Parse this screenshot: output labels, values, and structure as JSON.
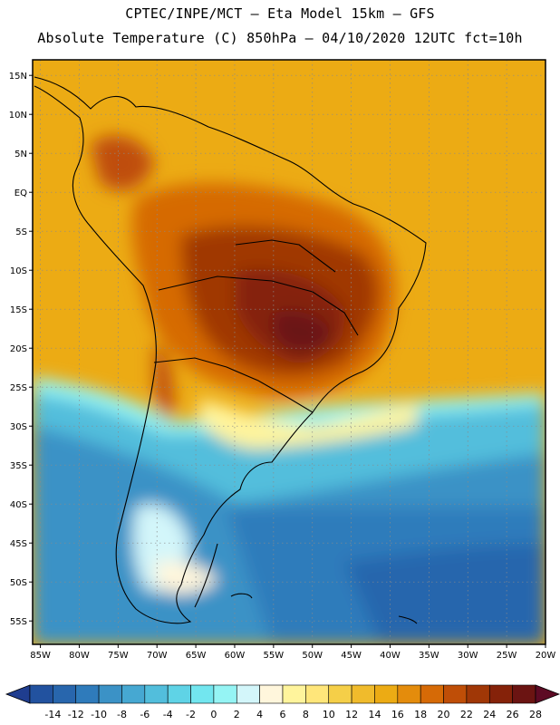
{
  "header": {
    "line1": "CPTEC/INPE/MCT –  Eta Model 15km – GFS",
    "line2": "Absolute Temperature (C) 850hPa – 04/10/2020 12UTC fct=10h"
  },
  "map": {
    "lon_range": [
      -86,
      -20
    ],
    "lat_range": [
      -58,
      17
    ],
    "lon_ticks": [
      {
        "value": -85,
        "label": "85W"
      },
      {
        "value": -80,
        "label": "80W"
      },
      {
        "value": -75,
        "label": "75W"
      },
      {
        "value": -70,
        "label": "70W"
      },
      {
        "value": -65,
        "label": "65W"
      },
      {
        "value": -60,
        "label": "60W"
      },
      {
        "value": -55,
        "label": "55W"
      },
      {
        "value": -50,
        "label": "50W"
      },
      {
        "value": -45,
        "label": "45W"
      },
      {
        "value": -40,
        "label": "40W"
      },
      {
        "value": -35,
        "label": "35W"
      },
      {
        "value": -30,
        "label": "30W"
      },
      {
        "value": -25,
        "label": "25W"
      },
      {
        "value": -20,
        "label": "20W"
      }
    ],
    "lat_ticks": [
      {
        "value": 15,
        "label": "15N"
      },
      {
        "value": 10,
        "label": "10N"
      },
      {
        "value": 5,
        "label": "5N"
      },
      {
        "value": 0,
        "label": "EQ"
      },
      {
        "value": -5,
        "label": "5S"
      },
      {
        "value": -10,
        "label": "10S"
      },
      {
        "value": -15,
        "label": "15S"
      },
      {
        "value": -20,
        "label": "20S"
      },
      {
        "value": -25,
        "label": "25S"
      },
      {
        "value": -30,
        "label": "30S"
      },
      {
        "value": -35,
        "label": "35S"
      },
      {
        "value": -40,
        "label": "40S"
      },
      {
        "value": -45,
        "label": "45S"
      },
      {
        "value": -50,
        "label": "50S"
      },
      {
        "value": -55,
        "label": "55S"
      }
    ],
    "colorbar": {
      "labels": [
        "-14",
        "-12",
        "-10",
        "-8",
        "-6",
        "-4",
        "-2",
        "0",
        "2",
        "4",
        "6",
        "8",
        "10",
        "12",
        "14",
        "16",
        "18",
        "20",
        "22",
        "24",
        "26",
        "28"
      ],
      "colors": [
        "#1f3d8f",
        "#22529f",
        "#2866ad",
        "#2f7bbb",
        "#3b92c6",
        "#46a8d2",
        "#52bedc",
        "#5fd3e6",
        "#72e6ef",
        "#95f4f4",
        "#d3f6fa",
        "#fff6dc",
        "#fff49c",
        "#ffe67a",
        "#f5cf48",
        "#f0bb2c",
        "#ecab14",
        "#e48c0c",
        "#d66a06",
        "#bf4e07",
        "#a03706",
        "#852209",
        "#6b1412",
        "#5d0a24"
      ]
    }
  }
}
